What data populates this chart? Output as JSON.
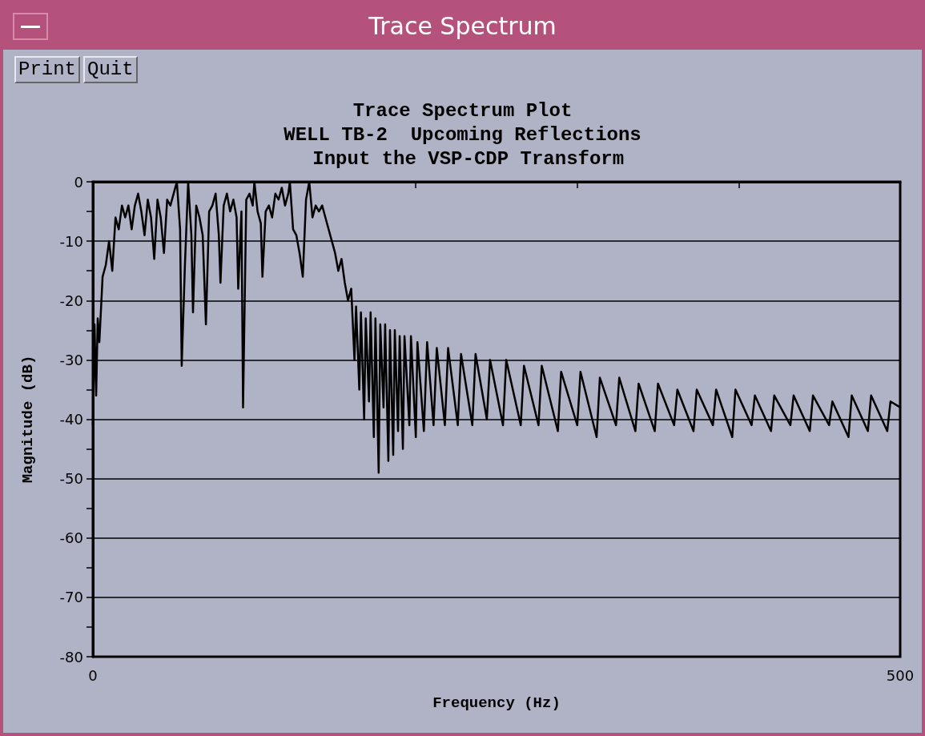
{
  "chart_data": {
    "type": "line",
    "title": "Trace Spectrum Plot\nWELL TB-2  Upcoming Reflections\n Input the VSP-CDP Transform",
    "xlabel": "Frequency (Hz)",
    "ylabel": "Magnitude (dB)",
    "annotations": [
      "Trace Spectrum",
      "Print",
      "Quit"
    ],
    "xlim": [
      0,
      500
    ],
    "xticks": [
      0,
      {
        "value": 100,
        "label": null
      },
      {
        "value": 200,
        "label": null
      },
      {
        "value": 300,
        "label": null
      },
      {
        "value": 400,
        "label": null
      },
      500
    ],
    "ylim": [
      -80,
      0
    ],
    "yticks": [
      -80,
      {
        "value": -75,
        "label": null
      },
      -70,
      {
        "value": -65,
        "label": null
      },
      -60,
      {
        "value": -55,
        "label": null
      },
      -50,
      {
        "value": -45,
        "label": null
      },
      -40,
      {
        "value": -35,
        "label": null
      },
      -30,
      {
        "value": -25,
        "label": null
      },
      -20,
      {
        "value": -15,
        "label": null
      },
      -10,
      {
        "value": -5,
        "label": null
      },
      0
    ],
    "grid": "y",
    "marker": "none",
    "line_style": "solid",
    "series": [
      {
        "color": "#000000",
        "x": [
          0,
          1,
          2,
          3,
          4,
          6,
          8,
          10,
          12,
          14,
          16,
          18,
          20,
          22,
          24,
          26,
          28,
          30,
          32,
          34,
          36,
          38,
          40,
          42,
          44,
          46,
          48,
          50,
          52,
          54,
          55,
          57,
          59,
          61,
          62,
          64,
          66,
          68,
          70,
          72,
          74,
          76,
          78,
          79,
          81,
          83,
          85,
          87,
          89,
          90,
          92,
          93,
          95,
          97,
          99,
          100,
          102,
          104,
          105,
          107,
          109,
          111,
          113,
          115,
          117,
          119,
          121,
          122,
          124,
          126,
          128,
          130,
          132,
          134,
          136,
          138,
          140,
          142,
          144,
          146,
          148,
          150,
          152,
          154,
          156,
          158,
          160,
          162,
          163,
          165,
          166,
          168,
          169,
          171,
          172,
          174,
          175,
          177,
          178,
          180,
          181,
          183,
          184,
          186,
          187,
          189,
          190,
          192,
          193,
          196,
          197,
          200,
          201,
          205,
          207,
          211,
          213,
          218,
          220,
          226,
          228,
          235,
          237,
          244,
          246,
          254,
          256,
          265,
          267,
          276,
          278,
          288,
          290,
          300,
          302,
          312,
          314,
          324,
          326,
          336,
          338,
          348,
          350,
          360,
          362,
          372,
          374,
          384,
          386,
          396,
          398,
          408,
          410,
          420,
          422,
          432,
          434,
          444,
          446,
          456,
          458,
          468,
          470,
          480,
          482,
          492,
          494,
          500
        ],
        "values": [
          -41,
          -24,
          -36,
          -23,
          -27,
          -16,
          -14,
          -10,
          -15,
          -6,
          -8,
          -4,
          -6,
          -4,
          -8,
          -4,
          -2,
          -5,
          -9,
          -3,
          -6,
          -13,
          -3,
          -6,
          -12,
          -3,
          -4,
          -2,
          0,
          -8,
          -31,
          -14,
          0,
          -9,
          -22,
          -4,
          -6,
          -9,
          -24,
          -5,
          -4,
          -2,
          -9,
          -17,
          -4,
          -2,
          -5,
          -3,
          -6,
          -18,
          -5,
          -38,
          -3,
          -2,
          -4,
          0,
          -5,
          -7,
          -16,
          -5,
          -4,
          -6,
          -2,
          -3,
          -1,
          -4,
          -2,
          0,
          -8,
          -9,
          -12,
          -16,
          -3,
          0,
          -6,
          -4,
          -5,
          -4,
          -6,
          -8,
          -10,
          -12,
          -15,
          -13,
          -17,
          -20,
          -18,
          -30,
          -21,
          -35,
          -22,
          -40,
          -23,
          -37,
          -22,
          -43,
          -23,
          -49,
          -24,
          -38,
          -24,
          -47,
          -25,
          -46,
          -25,
          -42,
          -26,
          -45,
          -26,
          -41,
          -26,
          -43,
          -27,
          -42,
          -27,
          -41,
          -28,
          -41,
          -28,
          -41,
          -29,
          -41,
          -29,
          -40,
          -30,
          -41,
          -30,
          -41,
          -31,
          -41,
          -31,
          -42,
          -32,
          -41,
          -32,
          -43,
          -33,
          -41,
          -33,
          -42,
          -34,
          -42,
          -34,
          -41,
          -35,
          -42,
          -35,
          -41,
          -35,
          -43,
          -35,
          -41,
          -36,
          -42,
          -36,
          -41,
          -36,
          -42,
          -36,
          -41,
          -37,
          -43,
          -36,
          -42,
          -36,
          -42,
          -37,
          -38
        ]
      }
    ]
  }
}
